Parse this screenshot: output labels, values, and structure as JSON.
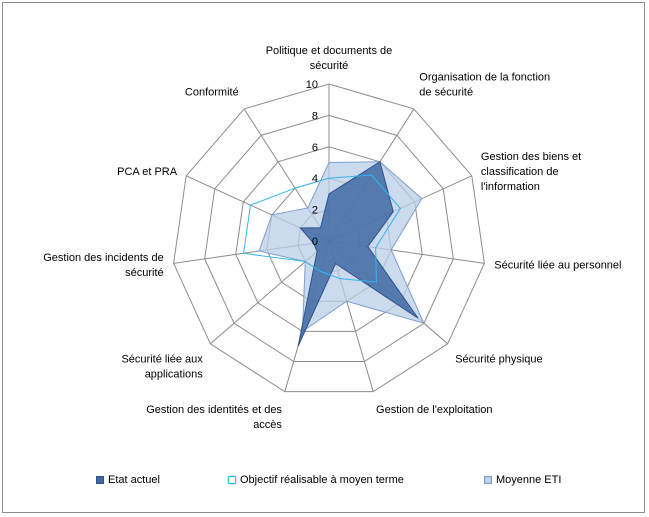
{
  "chart_data": {
    "type": "radar",
    "title": "",
    "categories": [
      "Politique et documents de sécurité",
      "Organisation de la fonction de sécurité",
      "Gestion des biens et classification de l'information",
      "Sécurité liée au personnel",
      "Sécurité physique",
      "Gestion de l'exploitation",
      "Gestion des identités et des accès",
      "Sécurité liée aux applications",
      "Gestion des incidents de sécurité",
      "PCA et PRA",
      "Conformité"
    ],
    "category_lines": [
      [
        "Politique et documents de",
        "sécurité"
      ],
      [
        "Organisation de la fonction",
        "de sécurité"
      ],
      [
        "Gestion des biens et",
        "classification de",
        "l'information"
      ],
      [
        "Sécurité liée au personnel"
      ],
      [
        "Sécurité physique"
      ],
      [
        "Gestion de l'exploitation"
      ],
      [
        "Gestion des identités et des",
        "accès"
      ],
      [
        "Sécurité liée aux",
        "applications"
      ],
      [
        "Gestion des incidents de",
        "sécurité"
      ],
      [
        "PCA et PRA"
      ],
      [
        "Conformité"
      ]
    ],
    "rlim": [
      0,
      10
    ],
    "ticks": [
      "0",
      "2",
      "4",
      "6",
      "8",
      "10"
    ],
    "tick_values": [
      0,
      2,
      4,
      6,
      8,
      10
    ],
    "grid": true,
    "legend_position": "bottom",
    "series": [
      {
        "name": "Moyenne ETI",
        "values": [
          5,
          6,
          6.5,
          4,
          8,
          4,
          6,
          2,
          4.5,
          4,
          2.5
        ],
        "fill": "#b9cde5",
        "stroke": "#7f9fcf"
      },
      {
        "name": "Etat actuel",
        "values": [
          3,
          6,
          4.5,
          2.5,
          7.5,
          1.5,
          7,
          1,
          1,
          2,
          1
        ],
        "fill": "#3f68a3",
        "stroke": "#2f528f"
      },
      {
        "name": "Objectif réalisable à moyen terme",
        "values": [
          4,
          5,
          5,
          3,
          4,
          2.5,
          2,
          2,
          5.5,
          5.5,
          4
        ],
        "fill": "none",
        "stroke": "#33b5f0"
      }
    ],
    "legend_order": [
      "Etat actuel",
      "Objectif réalisable à moyen terme",
      "Moyenne ETI"
    ]
  },
  "colors": {
    "grid": "#8c8c8c",
    "border": "#8c8c8c"
  }
}
